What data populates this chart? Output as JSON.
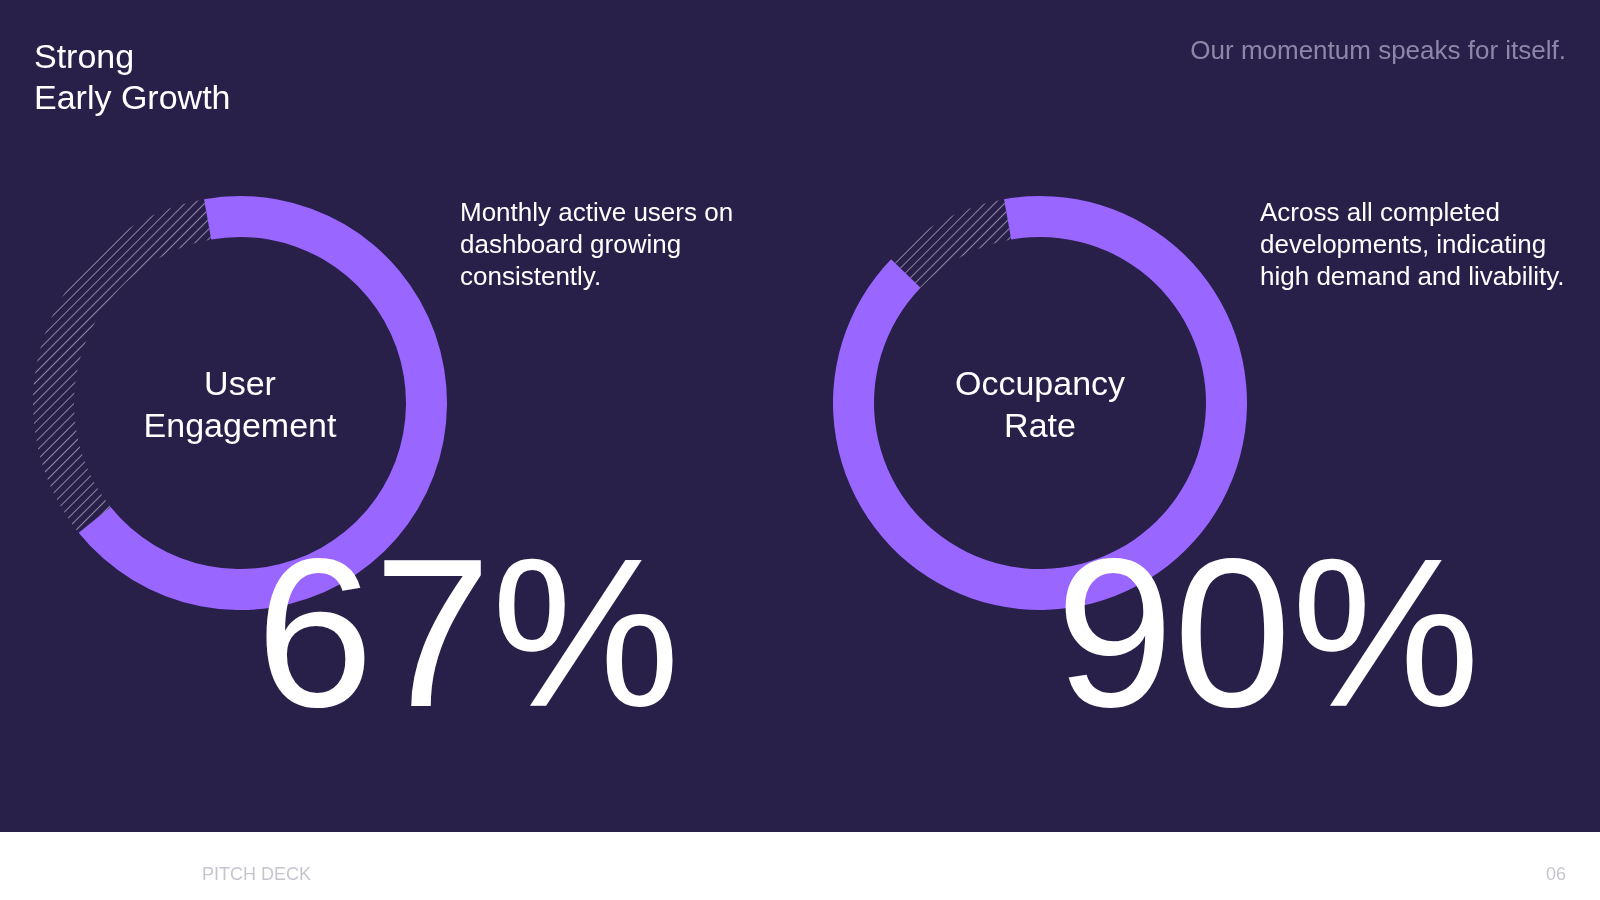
{
  "chart_data": [
    {
      "type": "other",
      "title": "Strong\nEarly Growth",
      "subtitle": "Our momentum speaks for itself.",
      "annotations": [
        "PITCH DECK",
        "06"
      ]
    },
    {
      "type": "donut",
      "title": "User Engagement",
      "categories": [
        null,
        null
      ],
      "values": [
        67,
        33
      ],
      "colors": [
        "#9966ff",
        "#8c86a3"
      ],
      "value_labels": [
        "67%",
        null
      ],
      "annotations": [
        "Monthly active users on dashboard growing consistently."
      ]
    },
    {
      "type": "donut",
      "title": "Occupancy Rate",
      "categories": [
        null,
        null
      ],
      "values": [
        90,
        10
      ],
      "colors": [
        "#9966ff",
        "#8c86a3"
      ],
      "value_labels": [
        "90%",
        null
      ],
      "annotations": [
        "Across all completed developments, indicating high demand and livability."
      ]
    }
  ]
}
